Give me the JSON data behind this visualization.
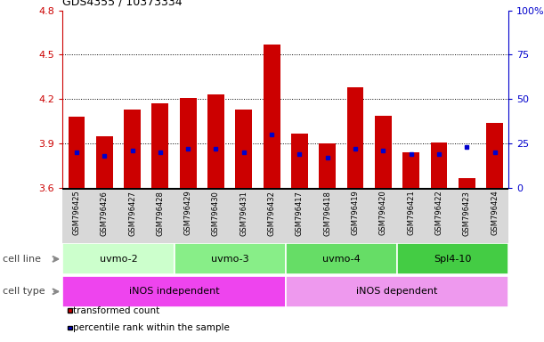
{
  "title": "GDS4355 / 10373334",
  "samples": [
    "GSM796425",
    "GSM796426",
    "GSM796427",
    "GSM796428",
    "GSM796429",
    "GSM796430",
    "GSM796431",
    "GSM796432",
    "GSM796417",
    "GSM796418",
    "GSM796419",
    "GSM796420",
    "GSM796421",
    "GSM796422",
    "GSM796423",
    "GSM796424"
  ],
  "transformed_count": [
    4.08,
    3.95,
    4.13,
    4.17,
    4.21,
    4.23,
    4.13,
    4.57,
    3.97,
    3.9,
    4.28,
    4.09,
    3.84,
    3.91,
    3.67,
    4.04
  ],
  "percentile_rank": [
    20,
    18,
    21,
    20,
    22,
    22,
    20,
    30,
    19,
    17,
    22,
    21,
    19,
    19,
    23,
    20
  ],
  "ylim_left": [
    3.6,
    4.8
  ],
  "ylim_right": [
    0,
    100
  ],
  "yticks_left": [
    3.6,
    3.9,
    4.2,
    4.5,
    4.8
  ],
  "yticks_right": [
    0,
    25,
    50,
    75,
    100
  ],
  "ytick_labels_left": [
    "3.6",
    "3.9",
    "4.2",
    "4.5",
    "4.8"
  ],
  "ytick_labels_right": [
    "0",
    "25",
    "50",
    "75",
    "100%"
  ],
  "bar_color": "#cc0000",
  "dot_color": "#0000cc",
  "bar_width": 0.6,
  "cell_lines": [
    {
      "label": "uvmo-2",
      "start": 0,
      "end": 3,
      "color": "#ccffcc"
    },
    {
      "label": "uvmo-3",
      "start": 4,
      "end": 7,
      "color": "#88ee88"
    },
    {
      "label": "uvmo-4",
      "start": 8,
      "end": 11,
      "color": "#66dd66"
    },
    {
      "label": "Spl4-10",
      "start": 12,
      "end": 15,
      "color": "#44cc44"
    }
  ],
  "cell_types": [
    {
      "label": "iNOS independent",
      "start": 0,
      "end": 7,
      "color": "#ee44ee"
    },
    {
      "label": "iNOS dependent",
      "start": 8,
      "end": 15,
      "color": "#ee99ee"
    }
  ],
  "cell_line_label": "cell line",
  "cell_type_label": "cell type",
  "legend_transformed": "transformed count",
  "legend_percentile": "percentile rank within the sample",
  "left_axis_color": "#cc0000",
  "right_axis_color": "#0000cc",
  "arrow_color": "#888888",
  "label_color": "#444444",
  "grid_lines": [
    3.9,
    4.2,
    4.5
  ]
}
